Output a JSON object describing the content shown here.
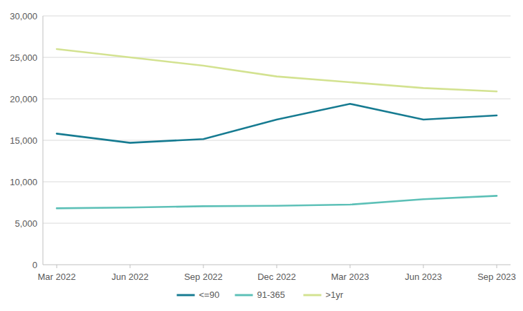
{
  "chart_data": {
    "type": "line",
    "categories": [
      "Mar 2022",
      "Jun 2022",
      "Sep 2022",
      "Dec 2022",
      "Mar 2023",
      "Jun 2023",
      "Sep 2023"
    ],
    "series": [
      {
        "name": "<=90",
        "color": "#167b91",
        "values": [
          15800,
          14700,
          15150,
          17500,
          19400,
          17500,
          18000
        ]
      },
      {
        "name": "91-365",
        "color": "#5cc0b7",
        "values": [
          6800,
          6900,
          7050,
          7100,
          7250,
          7900,
          8300
        ]
      },
      {
        "name": ">1yr",
        "color": "#d3e290",
        "values": [
          26000,
          25000,
          24000,
          22700,
          22000,
          21300,
          20900
        ]
      }
    ],
    "ylim": [
      0,
      30000
    ],
    "yticks": [
      0,
      {
        "value": 5000,
        "label": "5,000"
      },
      {
        "value": 10000,
        "label": "10,000"
      },
      {
        "value": 15000,
        "label": "15,000"
      },
      {
        "value": 20000,
        "label": "20,000"
      },
      {
        "value": 25000,
        "label": "25,000"
      },
      {
        "value": 30000,
        "label": "30,000"
      }
    ],
    "grid": true,
    "legend": "bottom"
  }
}
